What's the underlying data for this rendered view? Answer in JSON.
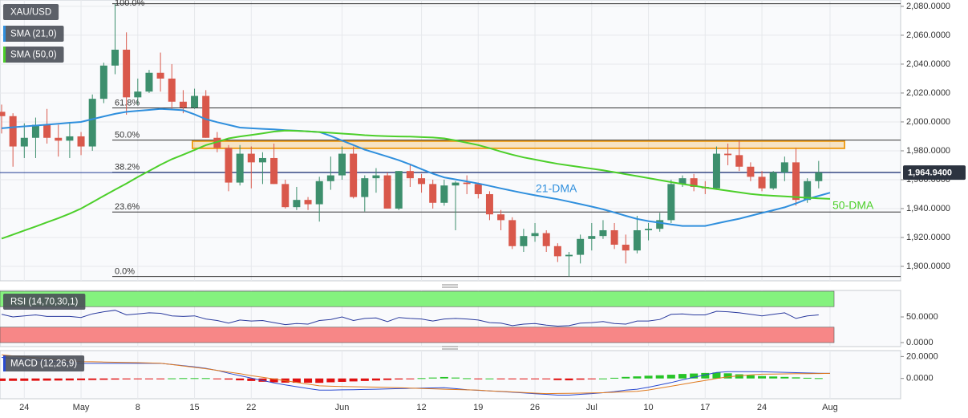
{
  "chart_data": [
    {
      "type": "candlestick",
      "title": "XAU/USD",
      "categories": [
        null,
        null,
        "24",
        null,
        null,
        null,
        null,
        "May",
        null,
        null,
        null,
        null,
        "8",
        null,
        null,
        null,
        null,
        "15",
        null,
        null,
        null,
        null,
        "22",
        null,
        null,
        null,
        null,
        null,
        null,
        null,
        "Jun",
        null,
        null,
        null,
        null,
        null,
        null,
        "12",
        null,
        null,
        null,
        null,
        "19",
        null,
        null,
        null,
        null,
        "26",
        null,
        null,
        null,
        null,
        "Jul",
        null,
        null,
        null,
        null,
        "10",
        null,
        null,
        null,
        null,
        "17",
        null,
        null,
        null,
        null,
        "24",
        null,
        null,
        null,
        null,
        null,
        "Aug"
      ],
      "open": [
        2007,
        2004,
        1983,
        1989,
        1998,
        1989,
        1987,
        1990,
        1983,
        2016,
        2039,
        2050,
        2017,
        2021,
        2034,
        2030,
        2014,
        2010,
        2018,
        1989,
        1982,
        1958,
        1978,
        1972,
        1975,
        1957,
        1941,
        1946,
        1943,
        1959,
        1963,
        1978,
        1948,
        1961,
        1963,
        1940,
        1966,
        1961,
        1957,
        1944,
        1956,
        1958,
        1957,
        1950,
        1936,
        1932,
        1914,
        1921,
        1923,
        1914,
        1907,
        1908,
        1919,
        1921,
        1925,
        1915,
        1911,
        1925,
        1926,
        1932,
        1957,
        1961,
        1955,
        1954,
        1978,
        1977,
        1969,
        1962,
        1954,
        1965,
        1972,
        1946,
        1959,
        null
      ],
      "high": [
        2012,
        2006,
        1999,
        2003,
        2009,
        1998,
        2000,
        1993,
        2019,
        2041,
        2081.8,
        2062,
        2030,
        2036,
        2048,
        2040,
        2022,
        2023,
        2022,
        1993,
        1984,
        1984,
        1983,
        1979,
        1985,
        1960,
        1955,
        1948,
        1962,
        1976,
        1983,
        1983,
        1963,
        1968,
        1965,
        1966,
        1970,
        1964,
        1960,
        1960,
        1959,
        1963,
        1958,
        1952,
        1939,
        1934,
        1926,
        1930,
        1925,
        1916,
        1910,
        1922,
        1930,
        1932,
        1930,
        1922,
        1935,
        1930,
        1937,
        1960,
        1963,
        1964,
        1959,
        1983,
        1985,
        1987,
        1972,
        1966,
        1966,
        1976,
        1982,
        1961,
        1973,
        null
      ],
      "low": [
        1992,
        1969,
        1975,
        1975,
        1985,
        1976,
        1975,
        1977,
        1980,
        2013,
        2033,
        2005,
        2012,
        2020,
        2021,
        2009,
        2006,
        2009,
        1989,
        1979,
        1952,
        1956,
        1954,
        1957,
        1957,
        1940,
        1939,
        1939,
        1931,
        1953,
        1960,
        1947,
        1938,
        1951,
        1940,
        1939,
        1955,
        1951,
        1940,
        1942,
        1925,
        1950,
        1947,
        1932,
        1925,
        1912,
        1910,
        1917,
        1910,
        1903,
        1893,
        1902,
        1911,
        1919,
        1912,
        1902,
        1909,
        1918,
        1924,
        1930,
        1955,
        1952,
        1950,
        1953,
        1970,
        1966,
        1959,
        1952,
        1953,
        1959,
        1942,
        1944,
        1954,
        null
      ],
      "close": [
        2004,
        1983,
        1989,
        1998,
        1989,
        1987,
        1990,
        1983,
        2016,
        2039,
        2050,
        2017,
        2021,
        2034,
        2030,
        2014,
        2010,
        2018,
        1989,
        1982,
        1958,
        1978,
        1972,
        1975,
        1957,
        1941,
        1946,
        1943,
        1959,
        1963,
        1978,
        1948,
        1961,
        1963,
        1940,
        1966,
        1961,
        1957,
        1944,
        1956,
        1958,
        1957,
        1950,
        1936,
        1932,
        1914,
        1921,
        1923,
        1914,
        1907,
        1908,
        1919,
        1921,
        1925,
        1915,
        1911,
        1925,
        1926,
        1932,
        1957,
        1961,
        1955,
        1954,
        1978,
        1977,
        1969,
        1962,
        1954,
        1965,
        1972,
        1946,
        1959,
        1964.94,
        null
      ],
      "up_color": "#3d8f6d",
      "down_color": "#d9584b",
      "series": [
        {
          "name": "SMA (21,0)",
          "label": "21-DMA",
          "color": "#2f8fdd",
          "values": [
            1995.6,
            1996.3,
            1996.9,
            1997.5,
            1998.1,
            1998.7,
            1999.4,
            2000.0,
            2001.9,
            2003.8,
            2005.6,
            2007.0,
            2007.7,
            2008.3,
            2009.0,
            2008.6,
            2008.1,
            2005.2,
            2001.9,
            1999.8,
            1998.0,
            1996.1,
            1995.6,
            1995.2,
            1994.8,
            1994.3,
            1993.9,
            1993.4,
            1993.0,
            1990.3,
            1987.1,
            1984.0,
            1980.8,
            1978.4,
            1976.0,
            1973.5,
            1970.6,
            1967.3,
            1964.2,
            1961.6,
            1960.2,
            1958.8,
            1957.4,
            1955.7,
            1954.0,
            1952.3,
            1950.7,
            1949.2,
            1947.8,
            1946.5,
            1944.8,
            1943.1,
            1941.4,
            1939.5,
            1937.3,
            1935.0,
            1932.8,
            1931.3,
            1930.2,
            1929.0,
            1928.0,
            1928.0,
            1928.0,
            1929.7,
            1931.4,
            1933.0,
            1935.0,
            1937.0,
            1938.9,
            1940.9,
            1943.6,
            1946.6,
            1948.8,
            1951.0
          ]
        },
        {
          "name": "SMA (50,0)",
          "label": "50-DMA",
          "color": "#4ccf2a",
          "values": [
            1919.2,
            1922.0,
            1924.8,
            1927.6,
            1930.5,
            1933.4,
            1936.5,
            1940.0,
            1944.4,
            1948.8,
            1953.1,
            1957.4,
            1961.9,
            1966.1,
            1970.3,
            1974.2,
            1977.3,
            1980.6,
            1983.9,
            1986.2,
            1988.6,
            1989.9,
            1991.0,
            1992.1,
            1993.3,
            1994.0,
            1993.8,
            1993.5,
            1993.0,
            1992.5,
            1991.9,
            1991.4,
            1990.8,
            1990.4,
            1990.1,
            1989.9,
            1989.8,
            1989.5,
            1989.2,
            1988.6,
            1987.2,
            1985.6,
            1984.0,
            1981.8,
            1979.5,
            1977.3,
            1975.4,
            1973.9,
            1972.4,
            1971.0,
            1969.8,
            1968.7,
            1967.6,
            1966.5,
            1965.2,
            1963.8,
            1962.5,
            1961.1,
            1959.7,
            1958.3,
            1957.0,
            1955.8,
            1954.6,
            1953.5,
            1952.3,
            1951.2,
            1950.1,
            1949.4,
            1948.9,
            1948.5,
            1948.0,
            1947.5,
            1947.1,
            1946.7
          ]
        }
      ],
      "fib_levels": [
        {
          "label": "100.0%",
          "price": 2081.8
        },
        {
          "label": "61.8%",
          "price": 2009.7
        },
        {
          "label": "50.0%",
          "price": 1987.4
        },
        {
          "label": "38.2%",
          "price": 1965.1
        },
        {
          "label": "23.6%",
          "price": 1937.6
        },
        {
          "label": "0.0%",
          "price": 1893
        }
      ],
      "zone": [
        1981.7,
        1986.7
      ],
      "zone_color": "#f0a020",
      "last_price": {
        "value": 1964.94,
        "label": "1,964.9400"
      },
      "ylim": [
        1890,
        2084.4
      ],
      "yticks": [
        {
          "value": 1900,
          "label": "1,900.0000"
        },
        {
          "value": 1920,
          "label": "1,920.0000"
        },
        {
          "value": 1940,
          "label": "1,940.0000"
        },
        {
          "value": 1960,
          "label": "1,960.0000"
        },
        {
          "value": 1980,
          "label": "1,980.0000"
        },
        {
          "value": 2000,
          "label": "2,000.0000"
        },
        {
          "value": 2020,
          "label": "2,020.0000"
        },
        {
          "value": 2040,
          "label": "2,040.0000"
        },
        {
          "value": 2060,
          "label": "2,060.0000"
        },
        {
          "value": 2080,
          "label": "2,080.0000"
        }
      ],
      "grid": true
    },
    {
      "type": "line",
      "title": "RSI (14,70,30,1)",
      "color": "#2a3a9e",
      "values": [
        55,
        50,
        52,
        54,
        51,
        51,
        51,
        49,
        56,
        60,
        63,
        54,
        56,
        58,
        57,
        52,
        51,
        52,
        46,
        43,
        38,
        44,
        42,
        43,
        39,
        35,
        37,
        36,
        43,
        45,
        50,
        43,
        47,
        48,
        41,
        49,
        47,
        46,
        42,
        46,
        47,
        46,
        44,
        39,
        38,
        33,
        36,
        37,
        34,
        32,
        33,
        38,
        39,
        41,
        37,
        36,
        42,
        42,
        45,
        55,
        56,
        54,
        54,
        61,
        60,
        58,
        55,
        52,
        55,
        58,
        47,
        52,
        54,
        null
      ],
      "bands": [
        {
          "range": [
            70,
            100
          ],
          "color": "#84f27e"
        },
        {
          "range": [
            0,
            30
          ],
          "color": "#f78787"
        }
      ],
      "ylim": [
        -7.8,
        101.6
      ],
      "yticks": [
        {
          "value": 0,
          "label": "0.0000"
        },
        {
          "value": 50,
          "label": "50.0000"
        }
      ]
    },
    {
      "type": "macd",
      "title": "MACD (12,26,9)",
      "series": [
        {
          "color": "#2a4ad0",
          "values": [
            19.2,
            18.4,
            17.6,
            16.8,
            16.0,
            15.2,
            14.5,
            13.8,
            13.8,
            13.8,
            13.8,
            13.8,
            13.8,
            13.8,
            13.8,
            12.8,
            11.7,
            10.6,
            9.2,
            7.3,
            4.8,
            2.6,
            0.3,
            -1.9,
            -4.0,
            -5.9,
            -7.5,
            -9.1,
            -10.7,
            -10.6,
            -10.4,
            -10.2,
            -10.0,
            -9.8,
            -9.6,
            -9.3,
            -9.0,
            -8.8,
            -8.6,
            -8.5,
            -9.3,
            -10.2,
            -10.8,
            -11.3,
            -11.9,
            -12.6,
            -13.2,
            -13.9,
            -14.5,
            -15.2,
            -15.2,
            -14.5,
            -13.8,
            -13.0,
            -12.0,
            -10.7,
            -9.8,
            -8.0,
            -5.9,
            -3.7,
            -1.2,
            1.0,
            3.2,
            5.4,
            6.2,
            6.2,
            6.2,
            6.1,
            5.8,
            5.6,
            5.3,
            5.0,
            4.8,
            4.6
          ]
        },
        {
          "color": "#e07b20",
          "values": [
            21.5,
            20.6,
            19.8,
            18.9,
            18.0,
            17.1,
            16.3,
            15.4,
            15.2,
            15.0,
            14.8,
            14.6,
            14.4,
            14.1,
            13.9,
            12.7,
            11.4,
            10.1,
            8.9,
            7.4,
            5.8,
            4.3,
            2.6,
            1.1,
            -0.5,
            -2.1,
            -3.6,
            -5.2,
            -6.7,
            -7.1,
            -7.3,
            -7.5,
            -7.7,
            -7.9,
            -8.2,
            -8.4,
            -8.8,
            -9.1,
            -9.4,
            -9.8,
            -10.1,
            -10.4,
            -10.7,
            -11.3,
            -11.8,
            -12.3,
            -12.8,
            -13.4,
            -13.8,
            -13.7,
            -13.5,
            -13.4,
            -13.2,
            -13.0,
            -12.6,
            -12.1,
            -11.7,
            -10.5,
            -8.8,
            -7.1,
            -5.3,
            -3.5,
            -1.8,
            0.0,
            1.5,
            2.4,
            3.3,
            3.9,
            4.0,
            4.2,
            4.3,
            4.4,
            4.5,
            4.6
          ]
        }
      ],
      "histogram": {
        "pos_color": "#27c427",
        "neg_color": "#e01010",
        "values": [
          -2.3,
          -2.2,
          -2.2,
          -2.1,
          -2.0,
          -1.9,
          -1.8,
          -1.6,
          -1.4,
          -1.2,
          -1.0,
          -0.8,
          -0.6,
          -0.3,
          -0.1,
          0.1,
          0.3,
          0.3,
          0.3,
          -0.1,
          -1.0,
          -1.7,
          -2.3,
          -3.0,
          -3.5,
          -3.8,
          -3.9,
          -3.9,
          -4.0,
          -3.5,
          -3.1,
          -2.7,
          -2.3,
          -1.9,
          -1.4,
          -0.9,
          -0.2,
          0.3,
          0.8,
          1.3,
          0.8,
          0.2,
          -0.1,
          0.0,
          -0.1,
          -0.3,
          -0.4,
          -0.5,
          -0.7,
          -1.5,
          -1.7,
          -1.1,
          -0.6,
          0.0,
          0.6,
          1.4,
          1.9,
          2.5,
          2.9,
          3.4,
          4.1,
          4.5,
          5.0,
          5.4,
          4.7,
          3.8,
          2.9,
          2.2,
          1.8,
          1.4,
          1.0,
          0.6,
          0.3,
          null
        ]
      },
      "ylim": [
        -18.5,
        25.4
      ],
      "yticks": [
        {
          "value": 0,
          "label": "0.0000"
        },
        {
          "value": 20,
          "label": "20.0000"
        }
      ]
    }
  ]
}
